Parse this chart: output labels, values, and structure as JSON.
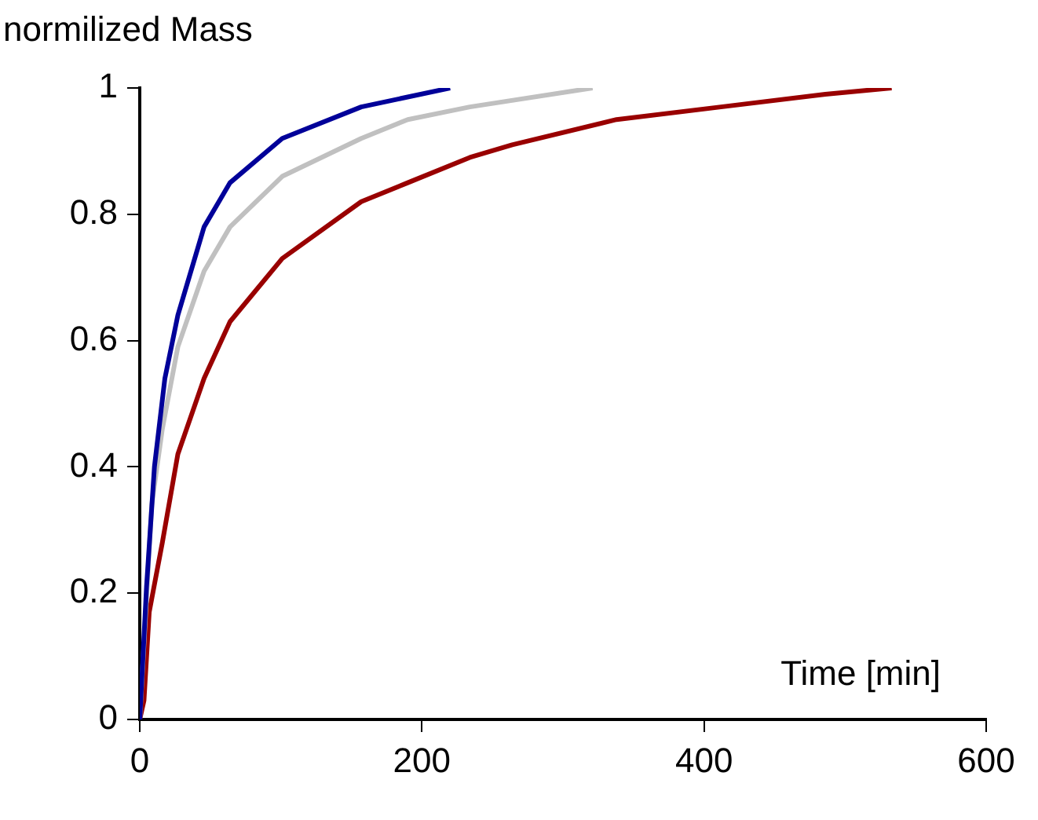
{
  "chart_data": {
    "type": "line",
    "xlabel": "Time [min]",
    "ylabel": "normilized Mass",
    "xlim": [
      0,
      600
    ],
    "xticks": [
      0,
      200,
      400,
      600
    ],
    "ylim": [
      0,
      1
    ],
    "yticks": [
      0,
      {
        "value": 0.2,
        "label": "0.2"
      },
      {
        "value": 0.4,
        "label": "0.4"
      },
      {
        "value": 0.6,
        "label": "0.6"
      },
      {
        "value": 0.8,
        "label": "0.8"
      },
      1
    ],
    "grid": false,
    "legend": false,
    "marker": "none",
    "line_style": "solid",
    "series": [
      {
        "color": "#000099",
        "x": [
          0,
          4.8,
          10.4,
          17.8,
          27,
          45.6,
          64,
          101,
          157,
          220
        ],
        "values": [
          0,
          0.21,
          0.4,
          0.54,
          0.64,
          0.78,
          0.85,
          0.92,
          0.97,
          1.0
        ]
      },
      {
        "color": "#c0c0c0",
        "x": [
          0,
          8.5,
          16,
          27,
          45.6,
          64,
          101,
          157,
          190,
          234,
          321
        ],
        "values": [
          0,
          0.34,
          0.46,
          0.59,
          0.71,
          0.78,
          0.86,
          0.92,
          0.95,
          0.97,
          1.0
        ]
      },
      {
        "color": "#990000",
        "x": [
          0,
          3,
          6.7,
          16,
          27,
          45.6,
          64,
          101,
          157,
          190,
          234,
          264,
          338,
          412,
          486,
          533
        ],
        "values": [
          0,
          0.03,
          0.17,
          0.28,
          0.42,
          0.54,
          0.63,
          0.73,
          0.82,
          0.85,
          0.89,
          0.91,
          0.95,
          0.97,
          0.99,
          1.0
        ]
      }
    ]
  }
}
